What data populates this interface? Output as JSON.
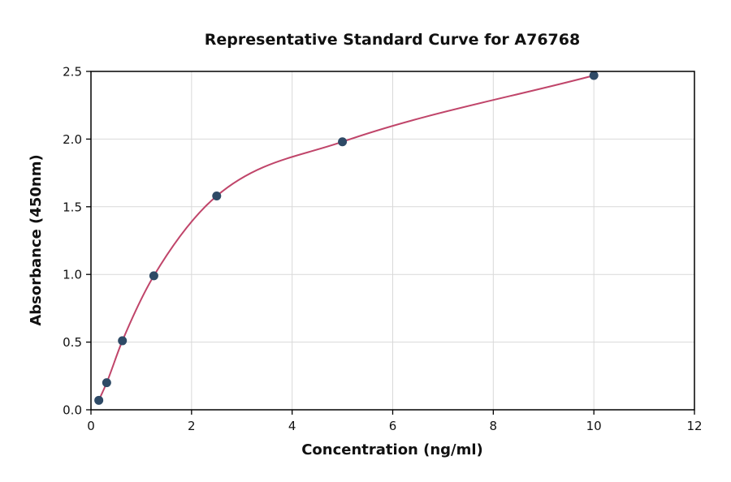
{
  "figure": {
    "background": "#ffffff",
    "title": "Representative Standard Curve for A76768",
    "xlabel": "Concentration (ng/ml)",
    "ylabel": "Absorbance (450nm)"
  },
  "chart_data": {
    "type": "scatter",
    "title": "Representative Standard Curve for A76768",
    "xlabel": "Concentration (ng/ml)",
    "ylabel": "Absorbance (450nm)",
    "xlim": [
      0,
      12
    ],
    "ylim": [
      0,
      2.5
    ],
    "x_ticks": [
      0,
      2,
      4,
      6,
      8,
      10,
      12
    ],
    "y_ticks": [
      0,
      0.5,
      1.0,
      1.5,
      2.0,
      2.5
    ],
    "x_tick_labels": [
      "0",
      "2",
      "4",
      "6",
      "8",
      "10",
      "12"
    ],
    "y_tick_labels": [
      "0.0",
      "0.5",
      "1.0",
      "1.5",
      "2.0",
      "2.5"
    ],
    "grid": true,
    "legend_position": "none",
    "points": [
      {
        "x": 0.156,
        "y": 0.07
      },
      {
        "x": 0.3125,
        "y": 0.2
      },
      {
        "x": 0.625,
        "y": 0.51
      },
      {
        "x": 1.25,
        "y": 0.99
      },
      {
        "x": 2.5,
        "y": 1.58
      },
      {
        "x": 5.0,
        "y": 1.98
      },
      {
        "x": 10.0,
        "y": 2.47
      }
    ],
    "fit_curve": "smooth sigmoidal (4PL-style) fit through standards",
    "colors": {
      "point": "#2e4a66",
      "curve": "#c0456a",
      "grid": "#d9d9d9",
      "axis": "#000000",
      "text": "#111111"
    },
    "marker_radius": 5.5,
    "curve_width": 2
  }
}
